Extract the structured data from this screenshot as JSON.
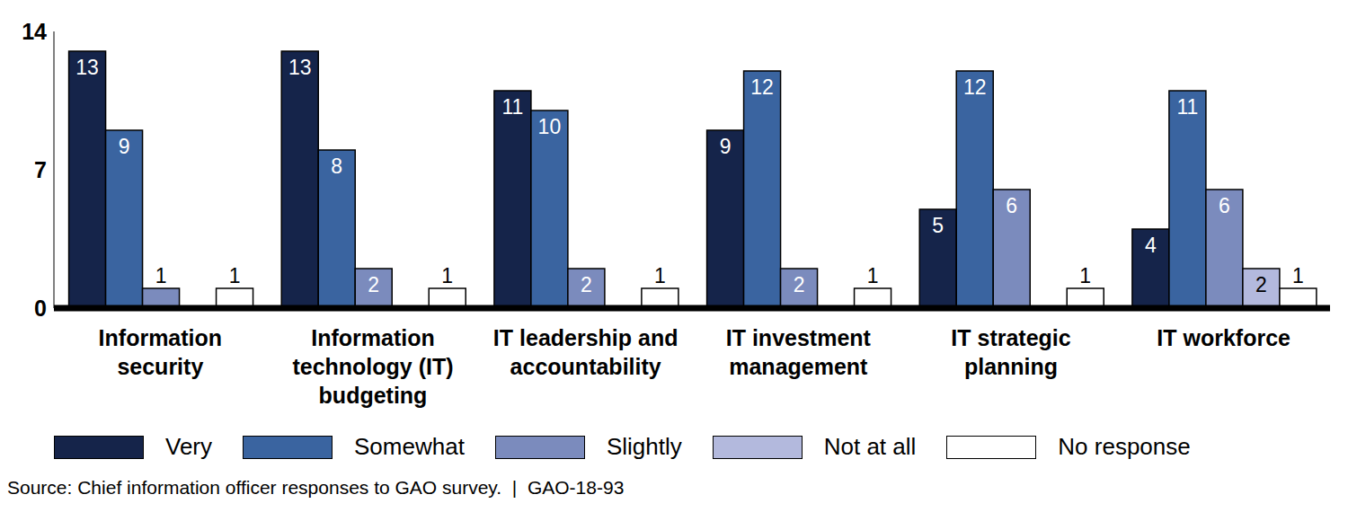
{
  "chart_data": {
    "type": "bar",
    "categories": [
      "Information security",
      "Information technology (IT) budgeting",
      "IT leadership and accountability",
      "IT investment management",
      "IT strategic planning",
      "IT workforce"
    ],
    "series": [
      {
        "name": "Very",
        "color": "#15244a",
        "values": [
          13,
          13,
          11,
          9,
          5,
          4
        ]
      },
      {
        "name": "Somewhat",
        "color": "#3a64a0",
        "values": [
          9,
          8,
          10,
          12,
          12,
          11
        ]
      },
      {
        "name": "Slightly",
        "color": "#7b8bbd",
        "values": [
          1,
          2,
          2,
          2,
          6,
          6
        ]
      },
      {
        "name": "Not at all",
        "color": "#b3b9dd",
        "values": [
          0,
          0,
          0,
          0,
          0,
          2
        ]
      },
      {
        "name": "No response",
        "color": "#ffffff",
        "values": [
          1,
          1,
          1,
          1,
          1,
          1
        ]
      }
    ],
    "ylim": [
      0,
      14
    ],
    "yticks": [
      0,
      7,
      14
    ],
    "grid": false,
    "legend": "bottom",
    "data_labels": true,
    "source": "Source: Chief information officer responses to GAO survey.  |  GAO-18-93"
  }
}
